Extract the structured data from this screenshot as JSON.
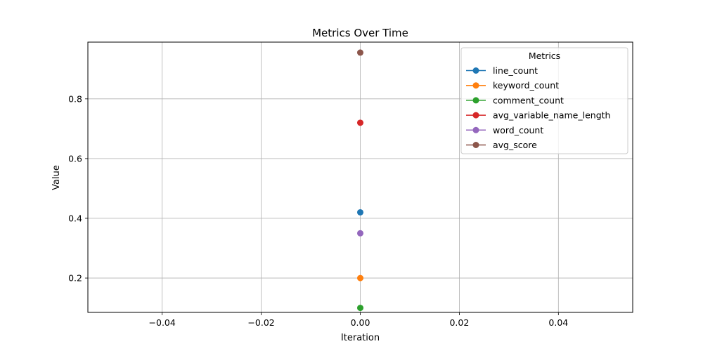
{
  "chart_data": {
    "type": "line",
    "title": "Metrics Over Time",
    "xlabel": "Iteration",
    "ylabel": "Value",
    "xlim": [
      -0.055,
      0.055
    ],
    "ylim": [
      0.085,
      0.99
    ],
    "xticks": [
      -0.04,
      -0.02,
      0.0,
      0.02,
      0.04
    ],
    "xtick_labels": [
      "−0.04",
      "−0.02",
      "0.00",
      "0.02",
      "0.04"
    ],
    "yticks": [
      0.2,
      0.4,
      0.6,
      0.8
    ],
    "ytick_labels": [
      "0.2",
      "0.4",
      "0.6",
      "0.8"
    ],
    "grid": true,
    "legend": {
      "title": "Metrics",
      "placement": "top-right"
    },
    "series": [
      {
        "name": "line_count",
        "color": "#1f77b4",
        "x": [
          0
        ],
        "y": [
          0.42
        ]
      },
      {
        "name": "keyword_count",
        "color": "#ff7f0e",
        "x": [
          0
        ],
        "y": [
          0.2
        ]
      },
      {
        "name": "comment_count",
        "color": "#2ca02c",
        "x": [
          0
        ],
        "y": [
          0.1
        ]
      },
      {
        "name": "avg_variable_name_length",
        "color": "#d62728",
        "x": [
          0
        ],
        "y": [
          0.72
        ]
      },
      {
        "name": "word_count",
        "color": "#9467bd",
        "x": [
          0
        ],
        "y": [
          0.35
        ]
      },
      {
        "name": "avg_score",
        "color": "#8c564b",
        "x": [
          0
        ],
        "y": [
          0.955
        ]
      }
    ]
  }
}
